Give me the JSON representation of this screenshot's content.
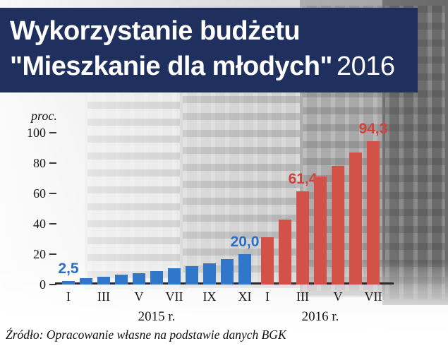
{
  "header": {
    "title_line1": "Wykorzystanie budżetu",
    "title_line2_main": "\"Mieszkanie dla młodych\"",
    "title_line2_year": "2016",
    "bg_color": "#20305e",
    "text_color": "#ffffff"
  },
  "chart_data": {
    "type": "bar",
    "title": "Wykorzystanie budżetu \"Mieszkanie dla młodych\" 2016",
    "xlabel": "",
    "ylabel": "proc.",
    "ylim": [
      0,
      100
    ],
    "yticks": [
      0,
      20,
      40,
      60,
      80,
      100
    ],
    "grid": false,
    "legend_position": "none",
    "groups": [
      {
        "label": "2015 r.",
        "color": "#3076c9",
        "label_color": "#2b6fc5",
        "months": [
          "I",
          "II",
          "III",
          "IV",
          "V",
          "VI",
          "VII",
          "VIII",
          "IX",
          "X",
          "XI"
        ],
        "visible_x_ticks": [
          "I",
          "III",
          "V",
          "VII",
          "IX",
          "XI"
        ],
        "values": [
          2.5,
          4,
          5,
          6.5,
          7.5,
          9,
          10.5,
          12,
          14,
          17,
          20
        ],
        "annotations": [
          {
            "month_index": 0,
            "text": "2,5"
          },
          {
            "month_index": 10,
            "text": "20,0"
          }
        ]
      },
      {
        "label": "2016 r.",
        "color": "#d25149",
        "label_color": "#d0423c",
        "months": [
          "I",
          "II",
          "III",
          "IV",
          "V",
          "VI",
          "VII"
        ],
        "visible_x_ticks": [
          "I",
          "III",
          "V",
          "VII"
        ],
        "values": [
          31,
          43,
          61.4,
          71,
          78,
          87,
          94.3
        ],
        "annotations": [
          {
            "month_index": 2,
            "text": "61,4"
          },
          {
            "month_index": 6,
            "text": "94,3"
          }
        ]
      }
    ]
  },
  "footer": {
    "source": "Źródło: Opracowanie własne na podstawie danych BGK"
  }
}
